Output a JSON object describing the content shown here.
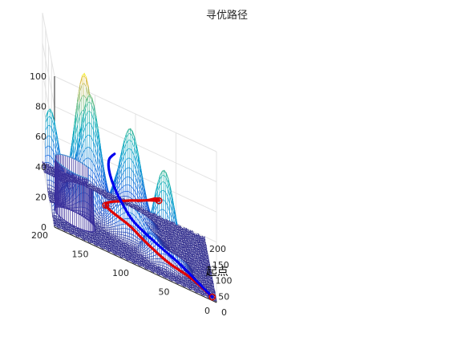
{
  "chart_data": {
    "type": "surface",
    "title": "寻优路径",
    "xlabel": "",
    "ylabel": "",
    "zlabel": "",
    "xlim": [
      0,
      200
    ],
    "ylim": [
      0,
      200
    ],
    "zlim": [
      0,
      100
    ],
    "x_ticks": [
      "0",
      "50",
      "100",
      "150",
      "200"
    ],
    "y_ticks": [
      "0",
      "50",
      "100",
      "150",
      "200"
    ],
    "z_ticks": [
      "0",
      "20",
      "40",
      "60",
      "80",
      "100"
    ],
    "grid": true,
    "colormap": "parula",
    "peaks": [
      {
        "x": 60,
        "y": 60,
        "h": 60,
        "sx": 13,
        "sy": 13
      },
      {
        "x": 100,
        "y": 100,
        "h": 55,
        "sx": 17,
        "sy": 17
      },
      {
        "x": 110,
        "y": 155,
        "h": 90,
        "sx": 12,
        "sy": 12
      },
      {
        "x": 150,
        "y": 145,
        "h": 70,
        "sx": 12,
        "sy": 12
      },
      {
        "x": 150,
        "y": 95,
        "h": 60,
        "sx": 13,
        "sy": 13
      },
      {
        "x": 140,
        "y": 195,
        "h": 50,
        "sx": 10,
        "sy": 10
      },
      {
        "x": 55,
        "y": 190,
        "h": 35,
        "sx": 8,
        "sy": 8
      }
    ],
    "cylinder": {
      "cx": 60,
      "cy": 170,
      "r": 25,
      "z0": 0,
      "z1": 35
    },
    "paths": [
      {
        "name": "red",
        "color": "#e00000",
        "points": [
          [
            2,
            5,
            2
          ],
          [
            6,
            30,
            7
          ],
          [
            4,
            60,
            11
          ],
          [
            8,
            88,
            17
          ],
          [
            16,
            106,
            21
          ],
          [
            38,
            134,
            23
          ],
          [
            80,
            110,
            23
          ],
          [
            120,
            78,
            23
          ],
          [
            152,
            64,
            21
          ],
          [
            176,
            58,
            16
          ],
          [
            182,
            70,
            12
          ],
          [
            178,
            84,
            9
          ]
        ]
      },
      {
        "name": "blue",
        "color": "#0000ee",
        "points": [
          [
            2,
            5,
            2
          ],
          [
            14,
            22,
            5
          ],
          [
            28,
            44,
            9
          ],
          [
            38,
            70,
            13
          ],
          [
            48,
            96,
            18
          ],
          [
            62,
            108,
            22
          ],
          [
            100,
            118,
            25
          ],
          [
            140,
            122,
            27
          ],
          [
            170,
            120,
            29
          ],
          [
            188,
            112,
            31
          ]
        ]
      }
    ],
    "markers": [
      {
        "x": 38,
        "y": 134,
        "z": 23,
        "color": "#d00000"
      },
      {
        "x": 176,
        "y": 58,
        "z": 16,
        "color": "#d00000"
      },
      {
        "x": 2,
        "y": 5,
        "z": 2,
        "color": "#d00000"
      }
    ],
    "annotations": [
      {
        "text": "起点",
        "x": 2,
        "y": 5,
        "z": 2
      }
    ]
  }
}
